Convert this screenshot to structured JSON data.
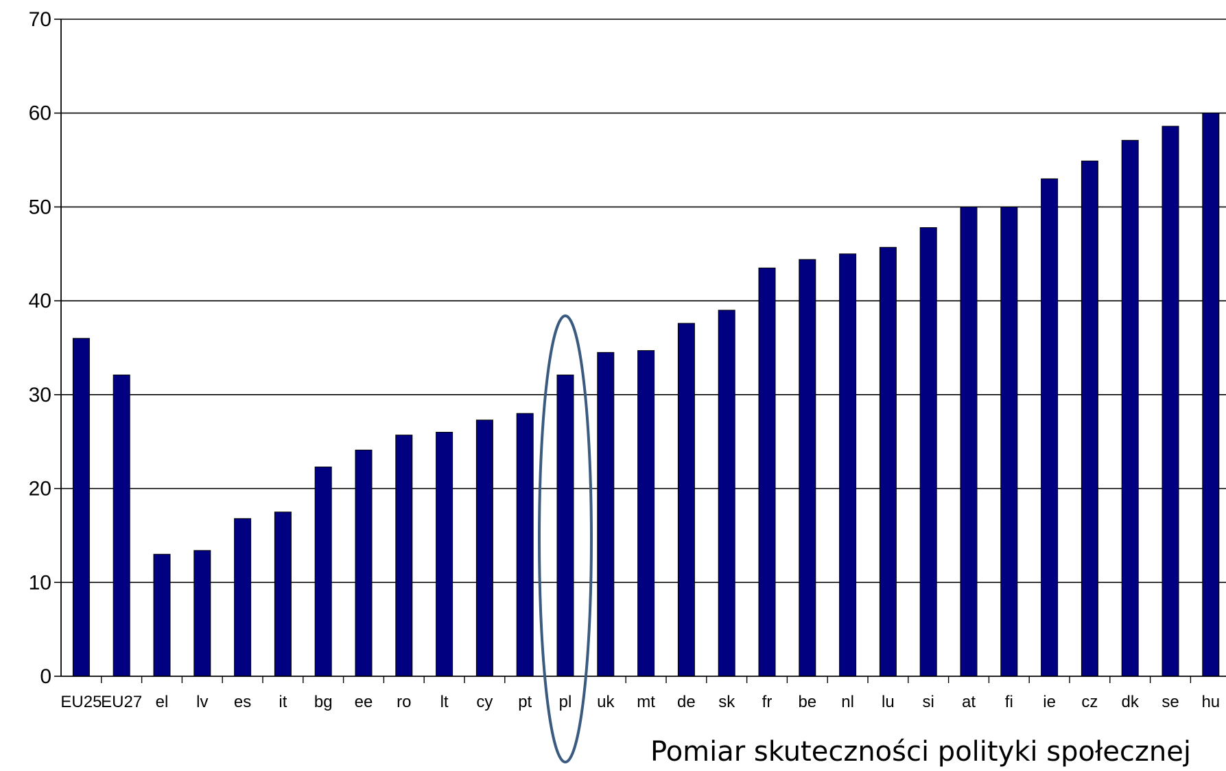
{
  "chart_data": {
    "type": "bar",
    "categories": [
      "EU25",
      "EU27",
      "el",
      "lv",
      "es",
      "it",
      "bg",
      "ee",
      "ro",
      "lt",
      "cy",
      "pt",
      "pl",
      "uk",
      "mt",
      "de",
      "sk",
      "fr",
      "be",
      "nl",
      "lu",
      "si",
      "at",
      "fi",
      "ie",
      "cz",
      "dk",
      "se",
      "hu"
    ],
    "values": [
      36.0,
      32.1,
      13.0,
      13.4,
      16.8,
      17.5,
      22.3,
      24.1,
      25.7,
      26.0,
      27.3,
      28.0,
      32.1,
      34.5,
      34.7,
      37.6,
      39.0,
      43.5,
      44.4,
      45.0,
      45.7,
      47.8,
      50.0,
      50.0,
      53.0,
      54.9,
      57.1,
      58.6,
      60.0
    ],
    "ylim": [
      0,
      70
    ],
    "yticks": [
      0,
      10,
      20,
      30,
      40,
      50,
      60,
      70
    ],
    "grid": true,
    "bar_color": "#000080",
    "highlight": "pl",
    "highlight_color": "#3a5a80"
  },
  "caption": "Pomiar skuteczności polityki społecznej"
}
